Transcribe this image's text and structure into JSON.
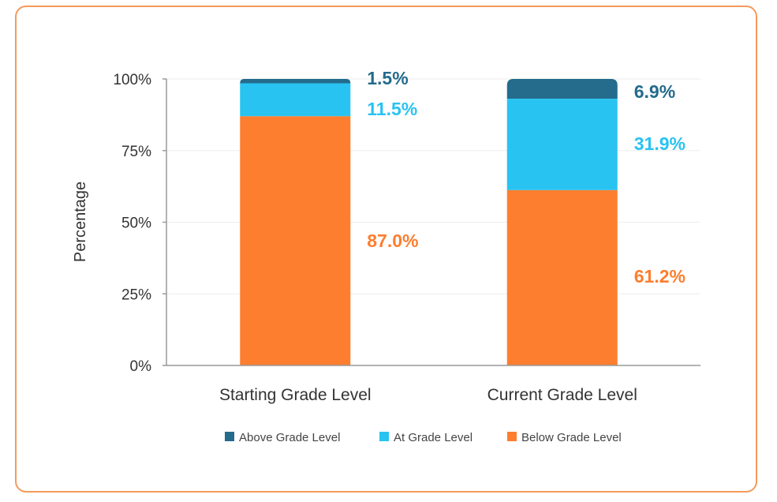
{
  "chart_data": {
    "type": "bar",
    "stacked": true,
    "categories": [
      "Starting Grade Level",
      "Current Grade Level"
    ],
    "series": [
      {
        "name": "Below Grade Level",
        "color": "#fd7e2f",
        "values": [
          87.0,
          61.2
        ],
        "labels": [
          "87.0%",
          "61.2%"
        ]
      },
      {
        "name": "At Grade Level",
        "color": "#29c3f1",
        "values": [
          11.5,
          31.9
        ],
        "labels": [
          "11.5%",
          "31.9%"
        ]
      },
      {
        "name": "Above Grade Level",
        "color": "#246b8c",
        "values": [
          1.5,
          6.9
        ],
        "labels": [
          "1.5%",
          "6.9%"
        ]
      }
    ],
    "legend_order": [
      "Above Grade Level",
      "At Grade Level",
      "Below Grade Level"
    ],
    "ylabel": "Percentage",
    "ylim": [
      0,
      100
    ],
    "yticks": [
      0,
      25,
      50,
      75,
      100
    ],
    "ytick_labels": [
      "0%",
      "25%",
      "50%",
      "75%",
      "100%"
    ],
    "grid": true,
    "legend_position": "bottom"
  }
}
